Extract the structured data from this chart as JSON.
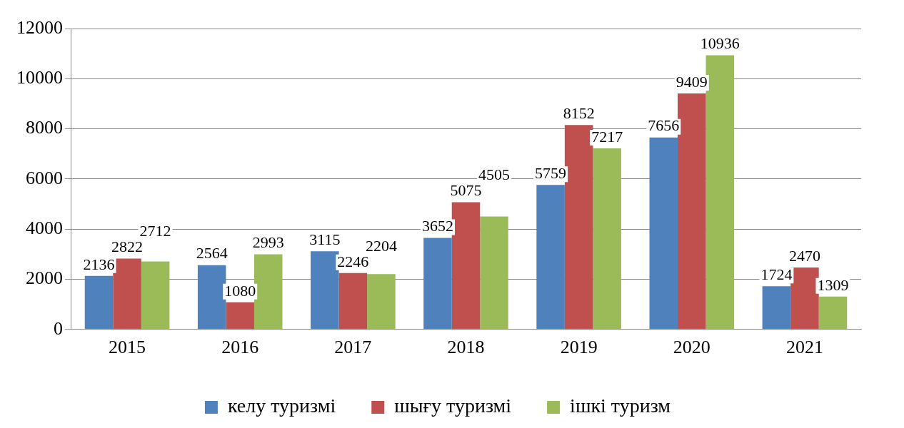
{
  "chart_data": {
    "type": "bar",
    "categories": [
      "2015",
      "2016",
      "2017",
      "2018",
      "2019",
      "2020",
      "2021"
    ],
    "series": [
      {
        "name": "келу туризмі",
        "color": "#4f81bd",
        "values": [
          2136,
          2564,
          3115,
          3652,
          5759,
          7656,
          1724
        ]
      },
      {
        "name": "шығу туризмі",
        "color": "#c0504d",
        "values": [
          2822,
          1080,
          2246,
          5075,
          8152,
          9409,
          2470
        ]
      },
      {
        "name": "ішкі туризм",
        "color": "#9bbb59",
        "values": [
          2712,
          2993,
          2204,
          4505,
          7217,
          10936,
          1309
        ]
      }
    ],
    "ylim": [
      0,
      12000
    ],
    "yticks": [
      0,
      2000,
      4000,
      6000,
      8000,
      10000,
      12000
    ],
    "grid": "y",
    "legend": "bottom",
    "data_labels": true
  }
}
